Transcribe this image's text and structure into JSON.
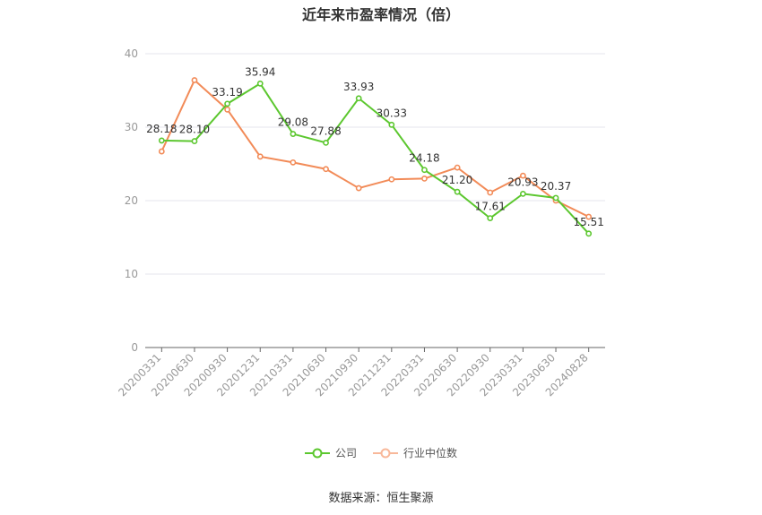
{
  "title": "近年来市盈率情况（倍）",
  "source": "数据来源：恒生聚源",
  "colors": {
    "company": "#5cc72f",
    "industry": "#f28b58",
    "grid": "#e6e6ee",
    "axis": "#666666",
    "tick": "#999999"
  },
  "chart_data": {
    "type": "line",
    "categories": [
      "20200331",
      "20200630",
      "20200930",
      "20201231",
      "20210331",
      "20210630",
      "20210930",
      "20211231",
      "20220331",
      "20220630",
      "20220930",
      "20230331",
      "20230630",
      "20240828"
    ],
    "ylim": [
      0,
      40
    ],
    "yticks": [
      0,
      10,
      20,
      30,
      40
    ],
    "grid": true,
    "legend_position": "bottom",
    "series": [
      {
        "name": "公司",
        "color": "#5cc72f",
        "show_labels": true,
        "values": [
          28.18,
          28.1,
          33.19,
          35.94,
          29.08,
          27.88,
          33.93,
          30.33,
          24.18,
          21.2,
          17.61,
          20.93,
          20.37,
          15.51
        ],
        "labels": [
          "28.18",
          "28.10",
          "33.19",
          "35.94",
          "29.08",
          "27.88",
          "33.93",
          "30.33",
          "24.18",
          "21.20",
          "17.61",
          "20.93",
          "20.37",
          "15.51"
        ]
      },
      {
        "name": "行业中位数",
        "color": "#f28b58",
        "show_labels": false,
        "values": [
          26.7,
          36.4,
          32.4,
          26.0,
          25.2,
          24.3,
          21.7,
          22.9,
          23.0,
          24.5,
          21.1,
          23.4,
          20.0,
          17.8
        ]
      }
    ]
  }
}
